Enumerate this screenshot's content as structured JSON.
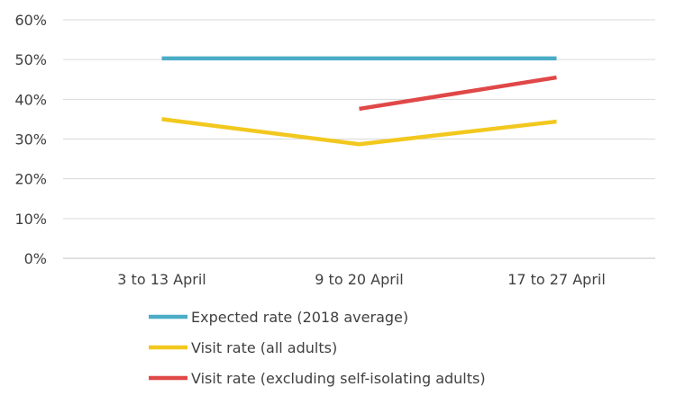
{
  "chart_data": {
    "type": "line",
    "categories": [
      "3 to 13 April",
      "9 to 20 April",
      "17 to 27 April"
    ],
    "y_ticks": [
      "0%",
      "10%",
      "20%",
      "30%",
      "40%",
      "50%",
      "60%"
    ],
    "ylim": [
      0,
      60
    ],
    "grid": true,
    "legend_position": "bottom",
    "series": [
      {
        "name": "Expected rate (2018 average)",
        "color": "#4BACC6",
        "values": [
          50.3,
          50.3,
          50.3
        ]
      },
      {
        "name": "Visit rate (all adults)",
        "color": "#F2C81E",
        "values": [
          35.0,
          28.7,
          34.4
        ]
      },
      {
        "name": "Visit rate (excluding self-isolating adults)",
        "color": "#E04848",
        "values": [
          null,
          37.6,
          45.5
        ]
      }
    ]
  }
}
